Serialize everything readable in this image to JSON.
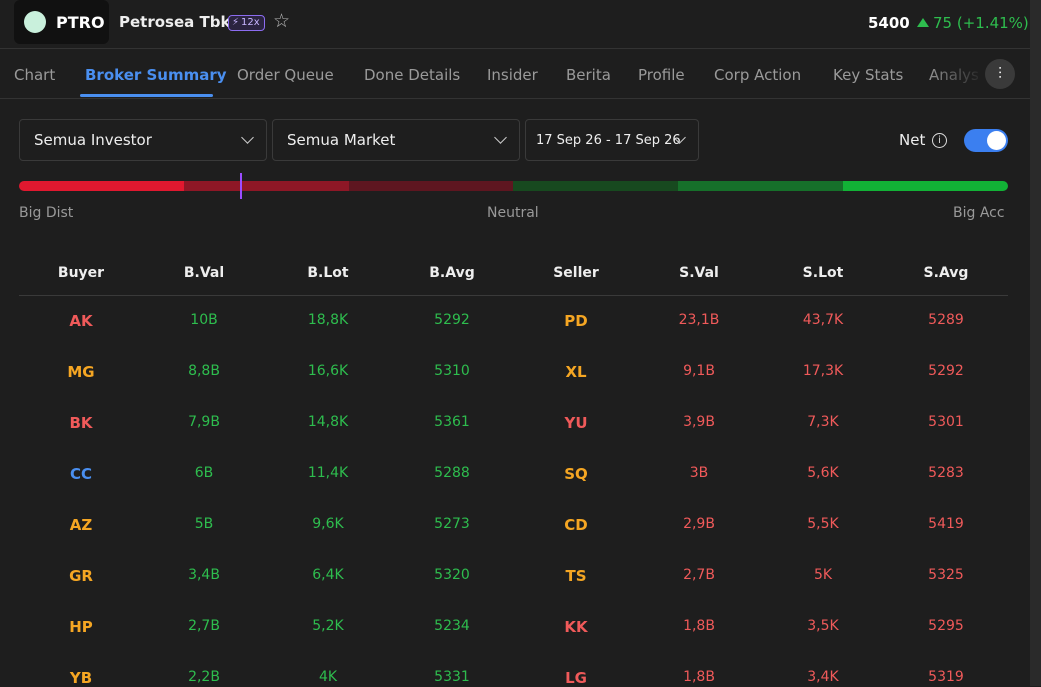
{
  "header": {
    "ticker": "PTRO",
    "name": "Petrosea Tbk.",
    "badge": "12x",
    "price": "5400",
    "change": "75 (+1.41%)"
  },
  "tabs": {
    "items": [
      "Chart",
      "Broker Summary",
      "Order Queue",
      "Done Details",
      "Insider",
      "Berita",
      "Profile",
      "Corp Action",
      "Key Stats",
      "Analys"
    ],
    "active": 1
  },
  "filters": {
    "investor": "Semua Investor",
    "market": "Semua Market",
    "date": "17 Sep 26 - 17 Sep 26",
    "net": "Net"
  },
  "scale": {
    "left": "Big Dist",
    "middle": "Neutral",
    "right": "Big Acc"
  },
  "table": {
    "columns": [
      "Buyer",
      "B.Val",
      "B.Lot",
      "B.Avg",
      "Seller",
      "S.Val",
      "S.Lot",
      "S.Avg"
    ],
    "rows": [
      [
        "AK",
        "10B",
        "18,8K",
        "5292",
        "PD",
        "23,1B",
        "43,7K",
        "5289"
      ],
      [
        "MG",
        "8,8B",
        "16,6K",
        "5310",
        "XL",
        "9,1B",
        "17,3K",
        "5292"
      ],
      [
        "BK",
        "7,9B",
        "14,8K",
        "5361",
        "YU",
        "3,9B",
        "7,3K",
        "5301"
      ],
      [
        "CC",
        "6B",
        "11,4K",
        "5288",
        "SQ",
        "3B",
        "5,6K",
        "5283"
      ],
      [
        "AZ",
        "5B",
        "9,6K",
        "5273",
        "CD",
        "2,9B",
        "5,5K",
        "5419"
      ],
      [
        "GR",
        "3,4B",
        "6,4K",
        "5320",
        "TS",
        "2,7B",
        "5K",
        "5325"
      ],
      [
        "HP",
        "2,7B",
        "5,2K",
        "5234",
        "KK",
        "1,8B",
        "3,5K",
        "5295"
      ],
      [
        "YB",
        "2,2B",
        "4K",
        "5331",
        "LG",
        "1,8B",
        "3,4K",
        "5319"
      ]
    ],
    "buyer_colors": [
      "#f05a5a",
      "#f5a623",
      "#f05a5a",
      "#4a8ff0",
      "#f5a623",
      "#f5a623",
      "#f5a623",
      "#f5a623"
    ],
    "seller_colors": [
      "#f5a623",
      "#f5a623",
      "#f05a5a",
      "#f5a623",
      "#f5a623",
      "#f5a623",
      "#f05a5a",
      "#f05a5a"
    ],
    "buy_color": "#2ebd4e",
    "sell_color": "#f05a5a"
  }
}
